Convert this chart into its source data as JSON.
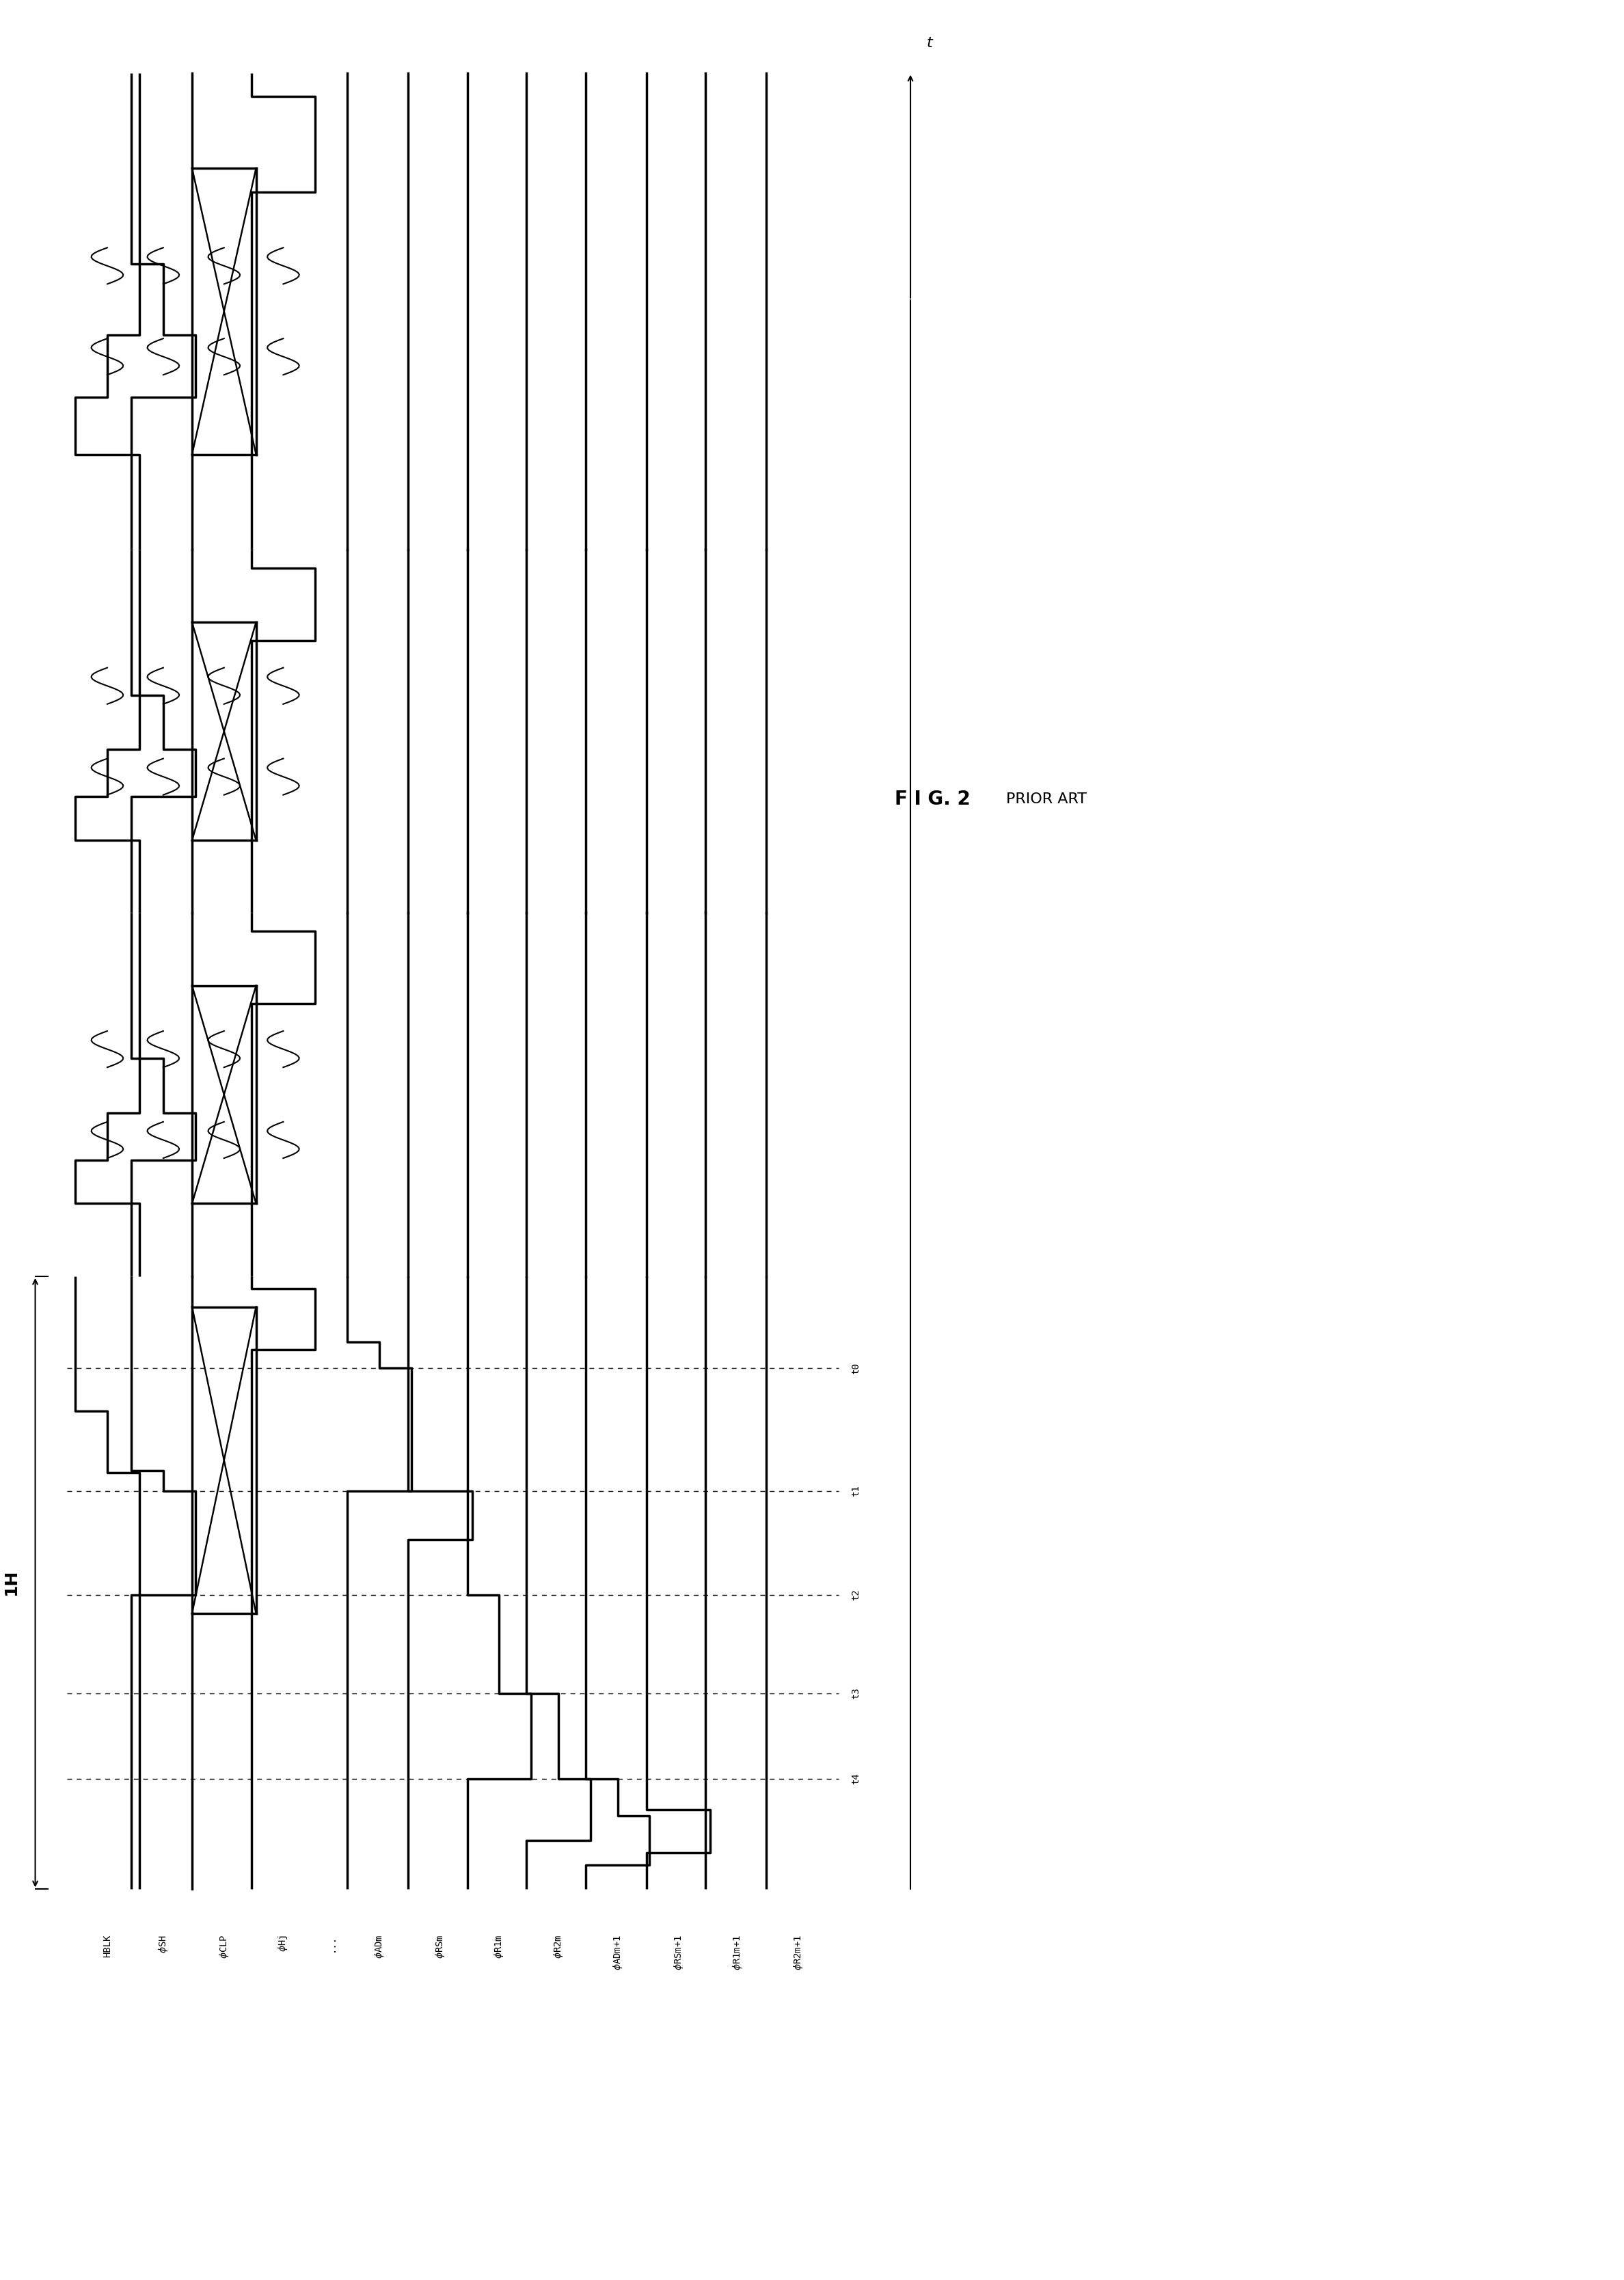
{
  "fig_width": 23.76,
  "fig_height": 33.35,
  "bg": "#ffffff",
  "lw": 2.5,
  "lw_thin": 1.5,
  "signal_labels": [
    "HBLK",
    "\\u03c6SH",
    "\\u03c6CLP",
    "\\u03c6Hj",
    "...",
    "\\u03c6ADm",
    "\\u03c6RSm",
    "\\u03c6R1m",
    "\\u03c6R2m",
    "\\u03c6ADm+1",
    "\\u03c6RSm+1",
    "\\u03c6R1m+1",
    "\\u03c6R2m+1"
  ],
  "time_labels": [
    "t0",
    "t1",
    "t2",
    "t3",
    "t4"
  ],
  "fig_label": "FIG. 2",
  "fig_sublabel": "PRIOR ART"
}
